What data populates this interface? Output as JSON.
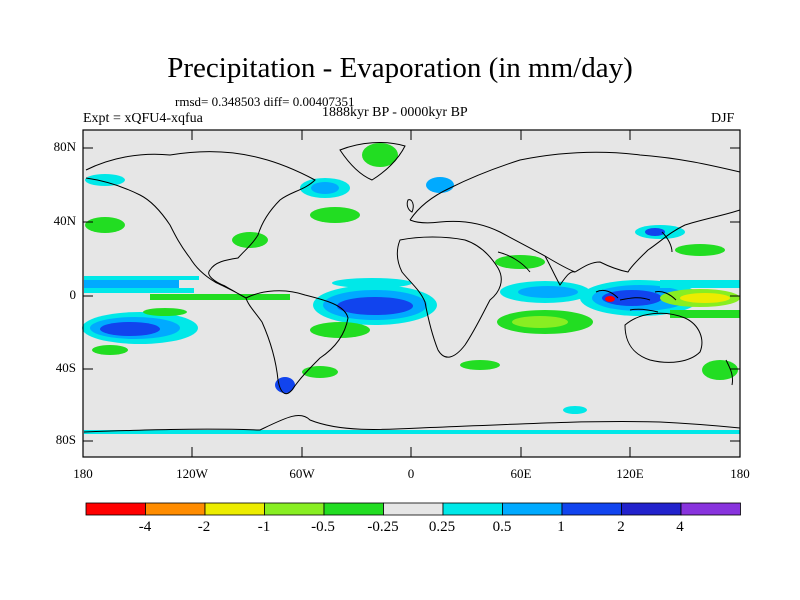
{
  "title": "Precipitation - Evaporation (in mm/day)",
  "stats": "rmsd= 0.348503 diff= 0.00407351",
  "period": "1888kyr BP - 0000kyr BP",
  "expt": "Expt = xQFU4-xqfua",
  "season": "DJF",
  "lat_ticks": [
    "80N",
    "40N",
    "0",
    "40S",
    "80S"
  ],
  "lon_ticks": [
    "180",
    "120W",
    "60W",
    "0",
    "60E",
    "120E",
    "180"
  ],
  "colorbar": {
    "labels": [
      "-4",
      "-2",
      "-1",
      "-0.5",
      "-0.25",
      "0.25",
      "0.5",
      "1",
      "2",
      "4"
    ],
    "colors": [
      "#ff0000",
      "#ff8c00",
      "#ecec00",
      "#88ee22",
      "#22dd22",
      "#e6e6e6",
      "#00e8e8",
      "#00aaff",
      "#1144ee",
      "#2222cc",
      "#8833dd"
    ]
  },
  "colors": {
    "land_sea_background": "#e6e6e6",
    "coastline": "#000000"
  }
}
